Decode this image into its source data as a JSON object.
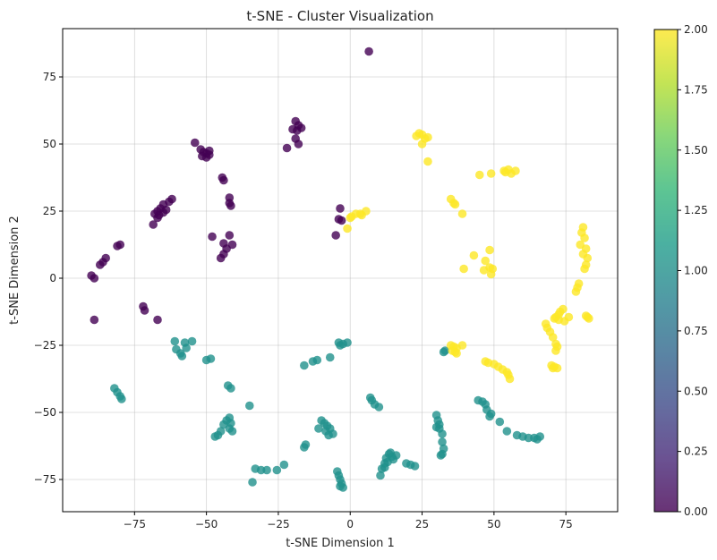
{
  "chart_data": {
    "type": "scatter",
    "title": "t-SNE - Cluster Visualization",
    "xlabel": "t-SNE Dimension 1",
    "ylabel": "t-SNE Dimension 2",
    "xlim": [
      -100,
      93
    ],
    "ylim": [
      -87,
      93
    ],
    "xticks": [
      -75,
      -50,
      -25,
      0,
      25,
      50,
      75
    ],
    "yticks": [
      -75,
      -50,
      -25,
      0,
      25,
      50,
      75
    ],
    "grid": true,
    "alpha": 0.8,
    "colorbar": {
      "range": [
        0,
        2
      ],
      "ticks": [
        "0.00",
        "0.25",
        "0.50",
        "0.75",
        "1.00",
        "1.25",
        "1.50",
        "1.75",
        "2.00"
      ],
      "colors": [
        "#440154",
        "#472878",
        "#3e4a89",
        "#31688e",
        "#26838f",
        "#1f9d8a",
        "#35b779",
        "#6cce5a",
        "#b5de2b",
        "#fde725"
      ]
    },
    "clusters": [
      {
        "value": 0,
        "color": "#440154",
        "points": [
          [
            6.5,
            84.5
          ],
          [
            -19,
            58.5
          ],
          [
            -18,
            57
          ],
          [
            -17,
            56
          ],
          [
            -20,
            55.5
          ],
          [
            -18.5,
            55
          ],
          [
            -19,
            52
          ],
          [
            -18,
            50
          ],
          [
            -22,
            48.5
          ],
          [
            -54,
            50.5
          ],
          [
            -52,
            48
          ],
          [
            -51,
            47
          ],
          [
            -50,
            46.5
          ],
          [
            -49,
            47.5
          ],
          [
            -51.5,
            45.5
          ],
          [
            -50,
            45
          ],
          [
            -49,
            46
          ],
          [
            -44.5,
            37.5
          ],
          [
            -44,
            36.5
          ],
          [
            -42,
            30
          ],
          [
            -42,
            28
          ],
          [
            -41.5,
            27
          ],
          [
            -42,
            16
          ],
          [
            -44,
            13
          ],
          [
            -43,
            11
          ],
          [
            -44,
            9
          ],
          [
            -45,
            7.5
          ],
          [
            -41,
            12.5
          ],
          [
            -48,
            15.5
          ],
          [
            -62,
            29.5
          ],
          [
            -63,
            28.5
          ],
          [
            -65,
            27.5
          ],
          [
            -66,
            26
          ],
          [
            -67,
            25
          ],
          [
            -68,
            24
          ],
          [
            -66.5,
            23.5
          ],
          [
            -65,
            24.5
          ],
          [
            -67,
            22.5
          ],
          [
            -68.5,
            20
          ],
          [
            -64,
            25.5
          ],
          [
            -80,
            12.5
          ],
          [
            -81,
            12
          ],
          [
            -85,
            7.5
          ],
          [
            -86,
            6
          ],
          [
            -87,
            5
          ],
          [
            -90,
            1
          ],
          [
            -89,
            0
          ],
          [
            -72,
            -10.5
          ],
          [
            -71.5,
            -12
          ],
          [
            -67,
            -15.5
          ],
          [
            -89,
            -15.5
          ],
          [
            -3.5,
            26
          ],
          [
            -4,
            22
          ],
          [
            -3,
            21.5
          ],
          [
            -5,
            16
          ]
        ]
      },
      {
        "value": 1,
        "color": "#21918c",
        "points": [
          [
            -61,
            -23.5
          ],
          [
            -60.5,
            -26.5
          ],
          [
            -59,
            -28
          ],
          [
            -58.5,
            -29
          ],
          [
            -57.5,
            -24
          ],
          [
            -55,
            -23.5
          ],
          [
            -57,
            -26
          ],
          [
            -50,
            -30.5
          ],
          [
            -48.5,
            -30
          ],
          [
            -42.5,
            -40
          ],
          [
            -41.5,
            -41
          ],
          [
            -82,
            -41
          ],
          [
            -81,
            -42.5
          ],
          [
            -80,
            -44
          ],
          [
            -79.5,
            -45
          ],
          [
            -47,
            -59
          ],
          [
            -46,
            -58.5
          ],
          [
            -45,
            -57
          ],
          [
            -44,
            -54.5
          ],
          [
            -43,
            -53
          ],
          [
            -42,
            -52
          ],
          [
            -41.5,
            -54
          ],
          [
            -42,
            -56
          ],
          [
            -41,
            -57
          ],
          [
            -35,
            -47.5
          ],
          [
            -33,
            -71
          ],
          [
            -31,
            -71.5
          ],
          [
            -29,
            -71.5
          ],
          [
            -25.5,
            -71.5
          ],
          [
            -23,
            -69.5
          ],
          [
            -34,
            -76
          ],
          [
            -16,
            -63
          ],
          [
            -15.5,
            -62
          ],
          [
            -10,
            -53
          ],
          [
            -9,
            -54
          ],
          [
            -8,
            -55
          ],
          [
            -7,
            -56
          ],
          [
            -8.5,
            -57
          ],
          [
            -6,
            -58
          ],
          [
            -7.5,
            -58.5
          ],
          [
            -11,
            -56
          ],
          [
            -13,
            -31
          ],
          [
            -11.5,
            -30.5
          ],
          [
            -7,
            -29.5
          ],
          [
            -16,
            -32.5
          ],
          [
            -4,
            -24
          ],
          [
            -3.5,
            -25
          ],
          [
            -2.5,
            -24.5
          ],
          [
            -1,
            -24
          ],
          [
            -4.5,
            -72
          ],
          [
            -4,
            -73.5
          ],
          [
            -3.5,
            -75
          ],
          [
            -3,
            -76.5
          ],
          [
            -2.5,
            -78
          ],
          [
            -3.5,
            -77.5
          ],
          [
            7,
            -44.5
          ],
          [
            7.5,
            -45.5
          ],
          [
            8.5,
            -47
          ],
          [
            10,
            -48
          ],
          [
            10.5,
            -73.5
          ],
          [
            11,
            -71
          ],
          [
            12,
            -69
          ],
          [
            12.5,
            -67
          ],
          [
            13.5,
            -65.5
          ],
          [
            14.5,
            -66.5
          ],
          [
            15,
            -67.5
          ],
          [
            13,
            -68.5
          ],
          [
            12,
            -70.5
          ],
          [
            14,
            -65
          ],
          [
            16,
            -66
          ],
          [
            19.5,
            -69
          ],
          [
            21,
            -69.5
          ],
          [
            22.5,
            -70
          ],
          [
            30,
            -51
          ],
          [
            30.5,
            -53
          ],
          [
            31,
            -54.5
          ],
          [
            30,
            -55.5
          ],
          [
            31,
            -56
          ],
          [
            32,
            -58
          ],
          [
            32,
            -61
          ],
          [
            32.5,
            -63.5
          ],
          [
            32,
            -65.5
          ],
          [
            31.5,
            -66
          ],
          [
            33,
            -27
          ],
          [
            32.5,
            -27.5
          ],
          [
            44.5,
            -45.5
          ],
          [
            46,
            -46
          ],
          [
            47,
            -47
          ],
          [
            47.5,
            -49
          ],
          [
            49,
            -50.5
          ],
          [
            48.5,
            -51.5
          ],
          [
            52,
            -53.5
          ],
          [
            54.5,
            -57
          ],
          [
            58,
            -58.5
          ],
          [
            60,
            -59
          ],
          [
            62,
            -59.5
          ],
          [
            64,
            -59.5
          ],
          [
            66,
            -59
          ],
          [
            65,
            -60
          ]
        ]
      },
      {
        "value": 2,
        "color": "#fde725",
        "points": [
          [
            23,
            53
          ],
          [
            24,
            54
          ],
          [
            25,
            53.5
          ],
          [
            26,
            52
          ],
          [
            27,
            52.5
          ],
          [
            25,
            50
          ],
          [
            27,
            43.5
          ],
          [
            45,
            38.5
          ],
          [
            49,
            39
          ],
          [
            53.5,
            40
          ],
          [
            55,
            40.5
          ],
          [
            56,
            39
          ],
          [
            57.5,
            40
          ],
          [
            54,
            39.5
          ],
          [
            35,
            29.5
          ],
          [
            36.5,
            27.5
          ],
          [
            39,
            24
          ],
          [
            36,
            28
          ],
          [
            -1,
            18.5
          ],
          [
            0,
            22.5
          ],
          [
            2,
            24
          ],
          [
            3.5,
            24
          ],
          [
            5.5,
            25
          ],
          [
            4,
            23.5
          ],
          [
            0.5,
            23
          ],
          [
            43,
            8.5
          ],
          [
            47,
            6.5
          ],
          [
            48.5,
            10.5
          ],
          [
            46.5,
            3
          ],
          [
            48.5,
            4
          ],
          [
            49.5,
            3.5
          ],
          [
            49,
            1.5
          ],
          [
            39.5,
            3.5
          ],
          [
            81,
            19
          ],
          [
            80.5,
            17
          ],
          [
            81.5,
            15
          ],
          [
            80,
            12.5
          ],
          [
            82,
            11
          ],
          [
            81,
            9
          ],
          [
            82.5,
            7.5
          ],
          [
            82,
            5
          ],
          [
            81.5,
            3.5
          ],
          [
            79.5,
            -2
          ],
          [
            79,
            -3.5
          ],
          [
            78.5,
            -5
          ],
          [
            74,
            -11.5
          ],
          [
            73,
            -12.5
          ],
          [
            72.5,
            -13.5
          ],
          [
            71.5,
            -14.5
          ],
          [
            71,
            -15
          ],
          [
            72.5,
            -15.5
          ],
          [
            74.5,
            -16
          ],
          [
            76,
            -14.5
          ],
          [
            82,
            -14
          ],
          [
            82.5,
            -14.5
          ],
          [
            83,
            -15
          ],
          [
            68,
            -17
          ],
          [
            68.5,
            -18.5
          ],
          [
            69.5,
            -20
          ],
          [
            70.5,
            -22
          ],
          [
            71.5,
            -24.5
          ],
          [
            72,
            -25.5
          ],
          [
            71.5,
            -27
          ],
          [
            70,
            -32.5
          ],
          [
            71,
            -33
          ],
          [
            72,
            -33.5
          ],
          [
            70.5,
            -33.5
          ],
          [
            35,
            -25
          ],
          [
            36,
            -25.5
          ],
          [
            37,
            -26
          ],
          [
            36.5,
            -27.5
          ],
          [
            37,
            -28
          ],
          [
            39,
            -25
          ],
          [
            35.5,
            -27
          ],
          [
            47,
            -31
          ],
          [
            48,
            -31.5
          ],
          [
            50,
            -32
          ],
          [
            51.5,
            -33
          ],
          [
            53,
            -34
          ],
          [
            54.5,
            -35
          ],
          [
            55,
            -36
          ],
          [
            55.5,
            -37.5
          ]
        ]
      }
    ]
  }
}
